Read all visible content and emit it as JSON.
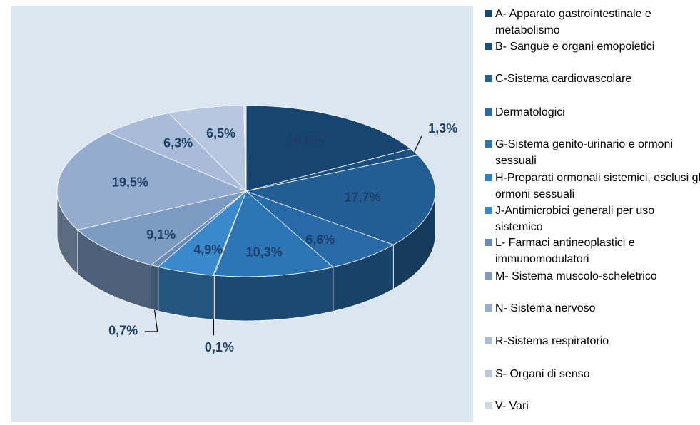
{
  "chart_data": {
    "type": "pie",
    "categories": [
      "A- Apparato gastrointestinale e metabolismo",
      "B- Sangue e organi emopoietici",
      "C-Sistema cardiovascolare",
      "Dermatologici",
      "G-Sistema genito-urinario e ormoni sessuali",
      "H-Preparati ormonali sistemici, esclusi gli ormoni sessuali",
      "J-Antimicrobici generali per uso sistemico",
      "L- Farmaci antineoplastici e immunomodulatori",
      "M- Sistema muscolo-scheletrico",
      "N- Sistema nervoso",
      "R-Sistema respiratorio",
      "S- Organi di senso",
      "V- Vari"
    ],
    "values": [
      16.8,
      1.3,
      17.7,
      6.6,
      10.3,
      0.1,
      4.9,
      0.7,
      9.1,
      19.5,
      6.3,
      6.5,
      0.2
    ],
    "value_labels": [
      "16,8%",
      "1,3%",
      "17,7%",
      "6,6%",
      "10,3%",
      "0,1%",
      "4,9%",
      "0,7%",
      "9,1%",
      "19,5%",
      "6,3%",
      "6,5%",
      null
    ],
    "colors": [
      "#17456f",
      "#1b4f80",
      "#225d94",
      "#286aa8",
      "#2d76b6",
      "#327fc1",
      "#3a89cc",
      "#6a8bb4",
      "#7c9bc3",
      "#95accf",
      "#a8bbd8",
      "#b7c7df",
      "#cfd9e8"
    ],
    "legend": "right"
  }
}
